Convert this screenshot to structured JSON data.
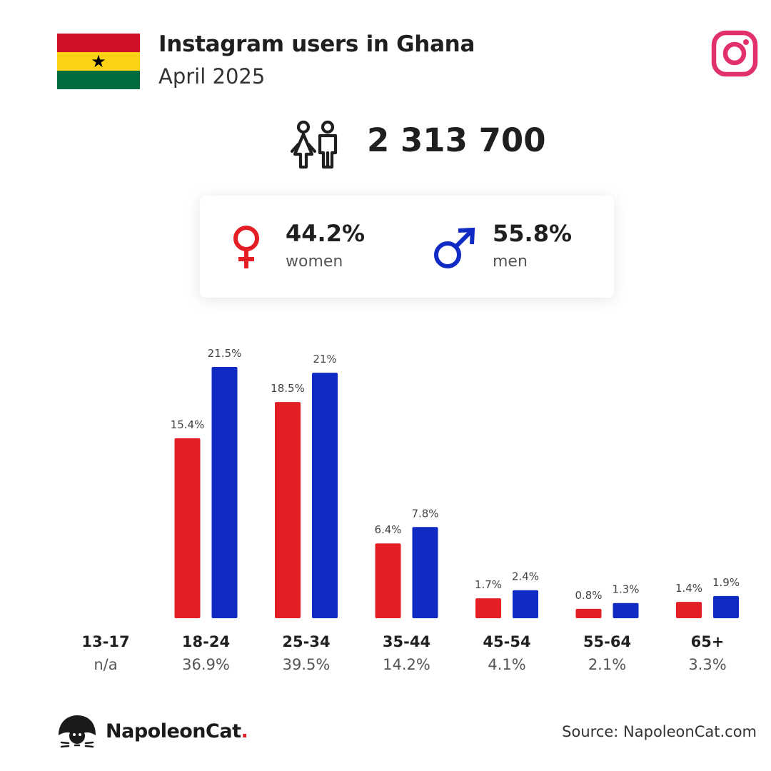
{
  "header": {
    "title": "Instagram users in Ghana",
    "subtitle": "April 2025",
    "flag_colors": [
      "#ce1126",
      "#fcd116",
      "#006b3f"
    ],
    "flag_star": "★",
    "platform_icon": "instagram-icon",
    "platform_color": "#e1306c"
  },
  "total": {
    "icon": "users-icon",
    "value": "2 313 700"
  },
  "gender": {
    "women": {
      "pct": "44.2%",
      "label": "women",
      "icon": "female-icon",
      "color": "#e31e24"
    },
    "men": {
      "pct": "55.8%",
      "label": "men",
      "icon": "male-icon",
      "color": "#0f2bc4"
    }
  },
  "chart_data": {
    "type": "bar",
    "categories": [
      "13-17",
      "18-24",
      "25-34",
      "35-44",
      "45-54",
      "55-64",
      "65+"
    ],
    "totals": [
      "n/a",
      "36.9%",
      "39.5%",
      "14.2%",
      "4.1%",
      "2.1%",
      "3.3%"
    ],
    "series": [
      {
        "color": "#e31e24",
        "values": [
          null,
          15.4,
          18.5,
          6.4,
          1.7,
          0.8,
          1.4
        ],
        "labels": [
          "",
          "15.4%",
          "18.5%",
          "6.4%",
          "1.7%",
          "0.8%",
          "1.4%"
        ]
      },
      {
        "color": "#0f2bc4",
        "values": [
          null,
          21.5,
          21,
          7.8,
          2.4,
          1.3,
          1.9
        ],
        "labels": [
          "",
          "21.5%",
          "21%",
          "7.8%",
          "2.4%",
          "1.3%",
          "1.9%"
        ]
      }
    ],
    "ylim": [
      0,
      21.5
    ],
    "grid": false,
    "legend": "none"
  },
  "footer": {
    "brand": "NapoleonCat",
    "brand_dot": ".",
    "source": "Source: NapoleonCat.com"
  }
}
